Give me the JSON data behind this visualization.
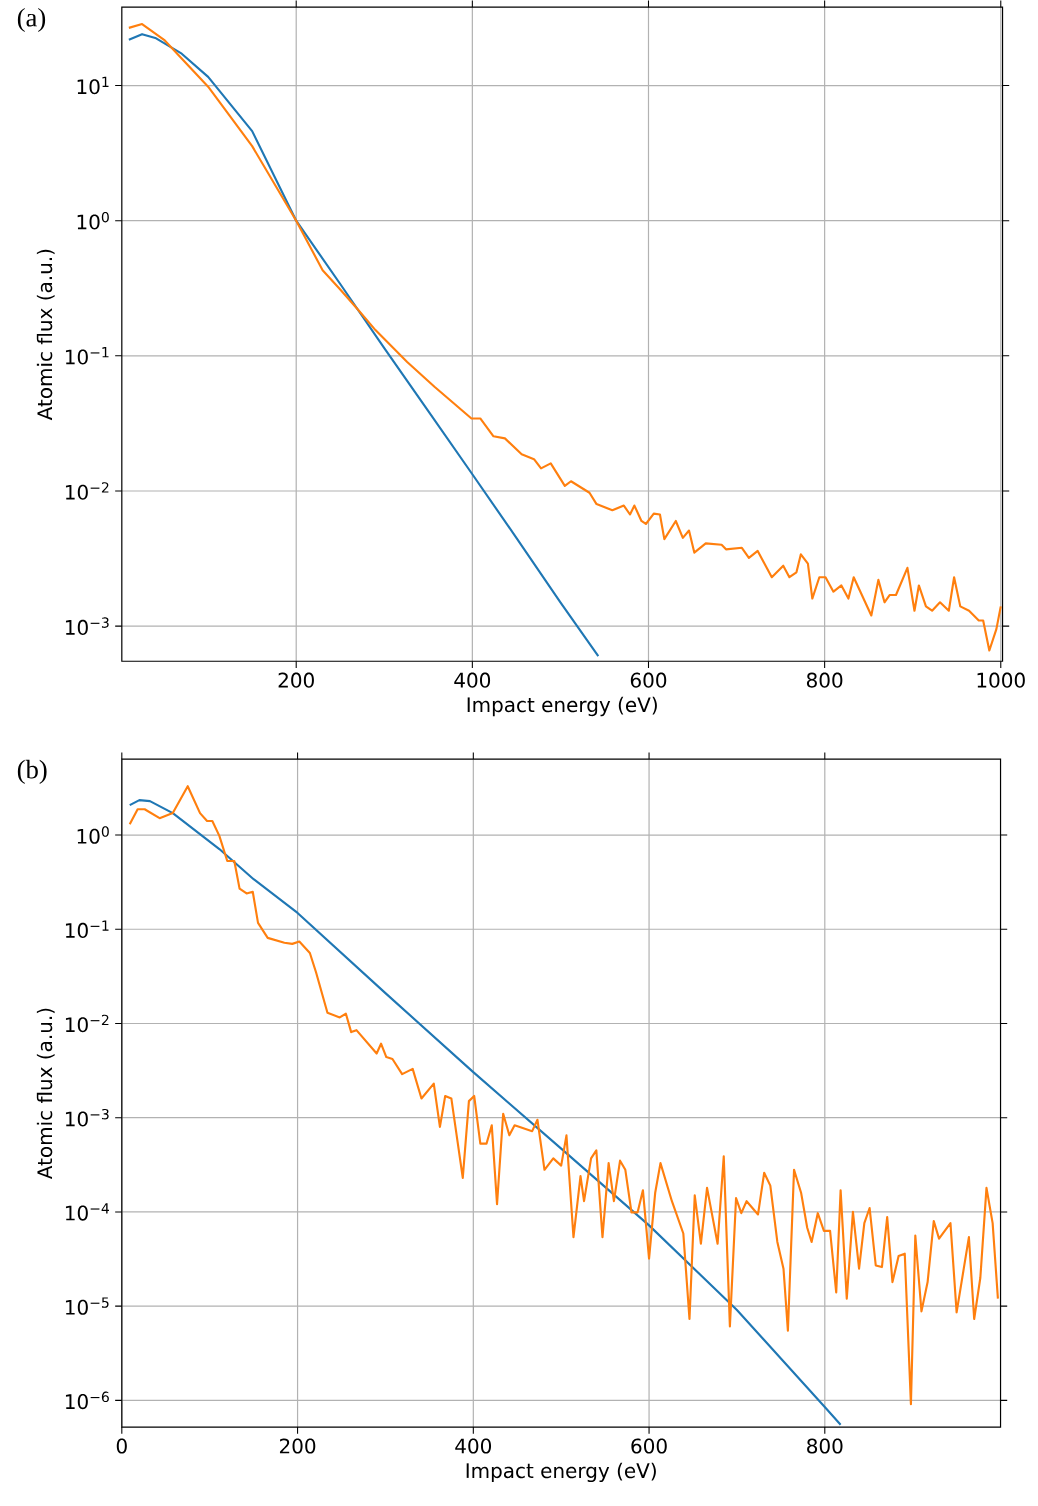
{
  "chart_data": [
    {
      "type": "line",
      "title": "(a)",
      "xlabel": "Impact energy (eV)",
      "ylabel": "Atomic flux (a.u.)",
      "log": "y",
      "grid": true,
      "xlim": [
        2,
        1002
      ],
      "ylim": [
        0.00055,
        38
      ],
      "xticks": [
        200,
        400,
        600,
        800,
        1000
      ],
      "yticks": [
        {
          "value": 0.001,
          "label": "10$^{−3}$"
        },
        {
          "value": 0.01,
          "label": "10$^{−2}$"
        },
        {
          "value": 0.1,
          "label": "10$^{−1}$"
        },
        {
          "value": 1,
          "label": "10$^{0}$"
        },
        {
          "value": 10,
          "label": "10$^{1}$"
        }
      ],
      "series": [
        {
          "color": "#1f77b4",
          "x": [
            10,
            25,
            40,
            70,
            100,
            150,
            200,
            250,
            300,
            350,
            400,
            450,
            500,
            543
          ],
          "values": [
            21.8,
            24,
            22.5,
            17.2,
            11.6,
            4.6,
            1,
            0.34,
            0.114,
            0.039,
            0.0133,
            0.0045,
            0.0015,
            0.0006
          ]
        },
        {
          "color": "#ff7f0e",
          "x": [
            10,
            25,
            50,
            100,
            150,
            200,
            230,
            250,
            270,
            290,
            326,
            357,
            399,
            409,
            424,
            437,
            456,
            470,
            478,
            489,
            505,
            512,
            533,
            541,
            559,
            572,
            579,
            584,
            592,
            597,
            606,
            613,
            618,
            631,
            639,
            646,
            652,
            665,
            683,
            688,
            706,
            714,
            724,
            740,
            753,
            760,
            768,
            773,
            781,
            786,
            794,
            801,
            810,
            819,
            827,
            833,
            853,
            861,
            868,
            874,
            881,
            894,
            902,
            907,
            915,
            922,
            931,
            941,
            947,
            954,
            964,
            975,
            980,
            987,
            995,
            1000
          ],
          "values": [
            26.7,
            28.5,
            21.8,
            9.8,
            3.56,
            1,
            0.43,
            0.31,
            0.22,
            0.155,
            0.09,
            0.059,
            0.0344,
            0.0344,
            0.0254,
            0.0245,
            0.0187,
            0.0172,
            0.0147,
            0.016,
            0.0109,
            0.0118,
            0.0097,
            0.008,
            0.0072,
            0.0078,
            0.0067,
            0.0078,
            0.006,
            0.0057,
            0.0068,
            0.0067,
            0.0044,
            0.006,
            0.0045,
            0.0051,
            0.0035,
            0.0041,
            0.004,
            0.0037,
            0.0038,
            0.0032,
            0.0036,
            0.0023,
            0.0028,
            0.0023,
            0.0025,
            0.0034,
            0.0029,
            0.0016,
            0.0023,
            0.0023,
            0.0018,
            0.002,
            0.0016,
            0.0023,
            0.0012,
            0.0022,
            0.0015,
            0.0017,
            0.0017,
            0.0027,
            0.0013,
            0.002,
            0.0014,
            0.0013,
            0.0015,
            0.0013,
            0.0023,
            0.0014,
            0.0013,
            0.0011,
            0.0011,
            0.00066,
            0.00095,
            0.0014
          ]
        }
      ]
    },
    {
      "type": "line",
      "title": "(b)",
      "xlabel": "Impact energy (eV)",
      "ylabel": "Atomic flux (a.u.)",
      "log": "y",
      "grid": true,
      "xlim": [
        0,
        1000
      ],
      "ylim": [
        5.2e-07,
        6.4
      ],
      "xticks": [
        0,
        200,
        400,
        600,
        800
      ],
      "yticks": [
        {
          "value": 1e-06,
          "label": "10$^{−6}$"
        },
        {
          "value": 1e-05,
          "label": "10$^{−5}$"
        },
        {
          "value": 0.0001,
          "label": "10$^{−4}$"
        },
        {
          "value": 0.001,
          "label": "10$^{−3}$"
        },
        {
          "value": 0.01,
          "label": "10$^{−2}$"
        },
        {
          "value": 0.1,
          "label": "10$^{−1}$"
        },
        {
          "value": 1,
          "label": "10$^{0}$"
        }
      ],
      "series": [
        {
          "color": "#1f77b4",
          "x": [
            9,
            20,
            32,
            58,
            111,
            150,
            200,
            300,
            399,
            500,
            600,
            700,
            801,
            818
          ],
          "values": [
            2.08,
            2.35,
            2.29,
            1.71,
            0.71,
            0.34,
            0.149,
            0.021,
            0.0031,
            0.00047,
            7.2e-05,
            9.1e-06,
            8.3e-07,
            5.5e-07
          ]
        },
        {
          "color": "#ff7f0e",
          "x": [
            9,
            18,
            26,
            43,
            58,
            75,
            89,
            97,
            103,
            111,
            120,
            128,
            134,
            142,
            149,
            155,
            166,
            185,
            194,
            202,
            214,
            221,
            234,
            248,
            255,
            261,
            267,
            290,
            295,
            301,
            308,
            319,
            331,
            341,
            355,
            362,
            368,
            375,
            388,
            395,
            401,
            408,
            415,
            421,
            427,
            434,
            441,
            447,
            467,
            473,
            481,
            491,
            500,
            506,
            514,
            522,
            526,
            534,
            540,
            547,
            554,
            560,
            567,
            573,
            580,
            587,
            593,
            600,
            607,
            613,
            626,
            639,
            646,
            652,
            659,
            666,
            678,
            685,
            692,
            699,
            705,
            711,
            724,
            731,
            738,
            746,
            753,
            758,
            765,
            773,
            780,
            785,
            792,
            799,
            806,
            813,
            818,
            825,
            832,
            839,
            845,
            851,
            858,
            865,
            871,
            877,
            884,
            891,
            898,
            903,
            910,
            917,
            924,
            930,
            943,
            950,
            964,
            970,
            977,
            984,
            991,
            997
          ],
          "values": [
            1.3,
            1.88,
            1.88,
            1.51,
            1.71,
            3.3,
            1.71,
            1.41,
            1.41,
            0.98,
            0.53,
            0.53,
            0.27,
            0.24,
            0.25,
            0.117,
            0.081,
            0.072,
            0.07,
            0.074,
            0.056,
            0.035,
            0.013,
            0.0116,
            0.0127,
            0.0081,
            0.0085,
            0.0048,
            0.0061,
            0.0044,
            0.0042,
            0.0029,
            0.0033,
            0.0016,
            0.0023,
            0.0008,
            0.0017,
            0.0016,
            0.00023,
            0.0015,
            0.0017,
            0.00053,
            0.00053,
            0.00083,
            0.000121,
            0.0011,
            0.00065,
            0.00083,
            0.00072,
            0.00095,
            0.00028,
            0.00037,
            0.00031,
            0.00065,
            5.4e-05,
            0.00024,
            0.00013,
            0.00037,
            0.00045,
            5.4e-05,
            0.00033,
            0.00013,
            0.00035,
            0.00028,
            9.9e-05,
            9.9e-05,
            0.00017,
            3.2e-05,
            0.00016,
            0.00033,
            0.00013,
            5.9e-05,
            7.3e-06,
            0.00015,
            4.6e-05,
            0.00018,
            4.6e-05,
            0.00039,
            6.1e-06,
            0.00014,
            9.7e-05,
            0.00013,
            9.4e-05,
            0.00026,
            0.00019,
            4.8e-05,
            2.5e-05,
            5.5e-06,
            0.00028,
            0.00016,
            6.8e-05,
            4.8e-05,
            9.7e-05,
            6.3e-05,
            6.3e-05,
            1.4e-05,
            0.00017,
            1.2e-05,
            0.0001,
            2.5e-05,
            7.6e-05,
            0.00011,
            2.7e-05,
            2.6e-05,
            8.8e-05,
            1.8e-05,
            3.4e-05,
            3.6e-05,
            9.1e-07,
            5.6e-05,
            8.8e-06,
            1.8e-05,
            8e-05,
            5.2e-05,
            7.6e-05,
            8.6e-06,
            5.4e-05,
            7.3e-06,
            2e-05,
            0.00018,
            7.6e-05,
            1.2e-05
          ]
        }
      ]
    }
  ]
}
